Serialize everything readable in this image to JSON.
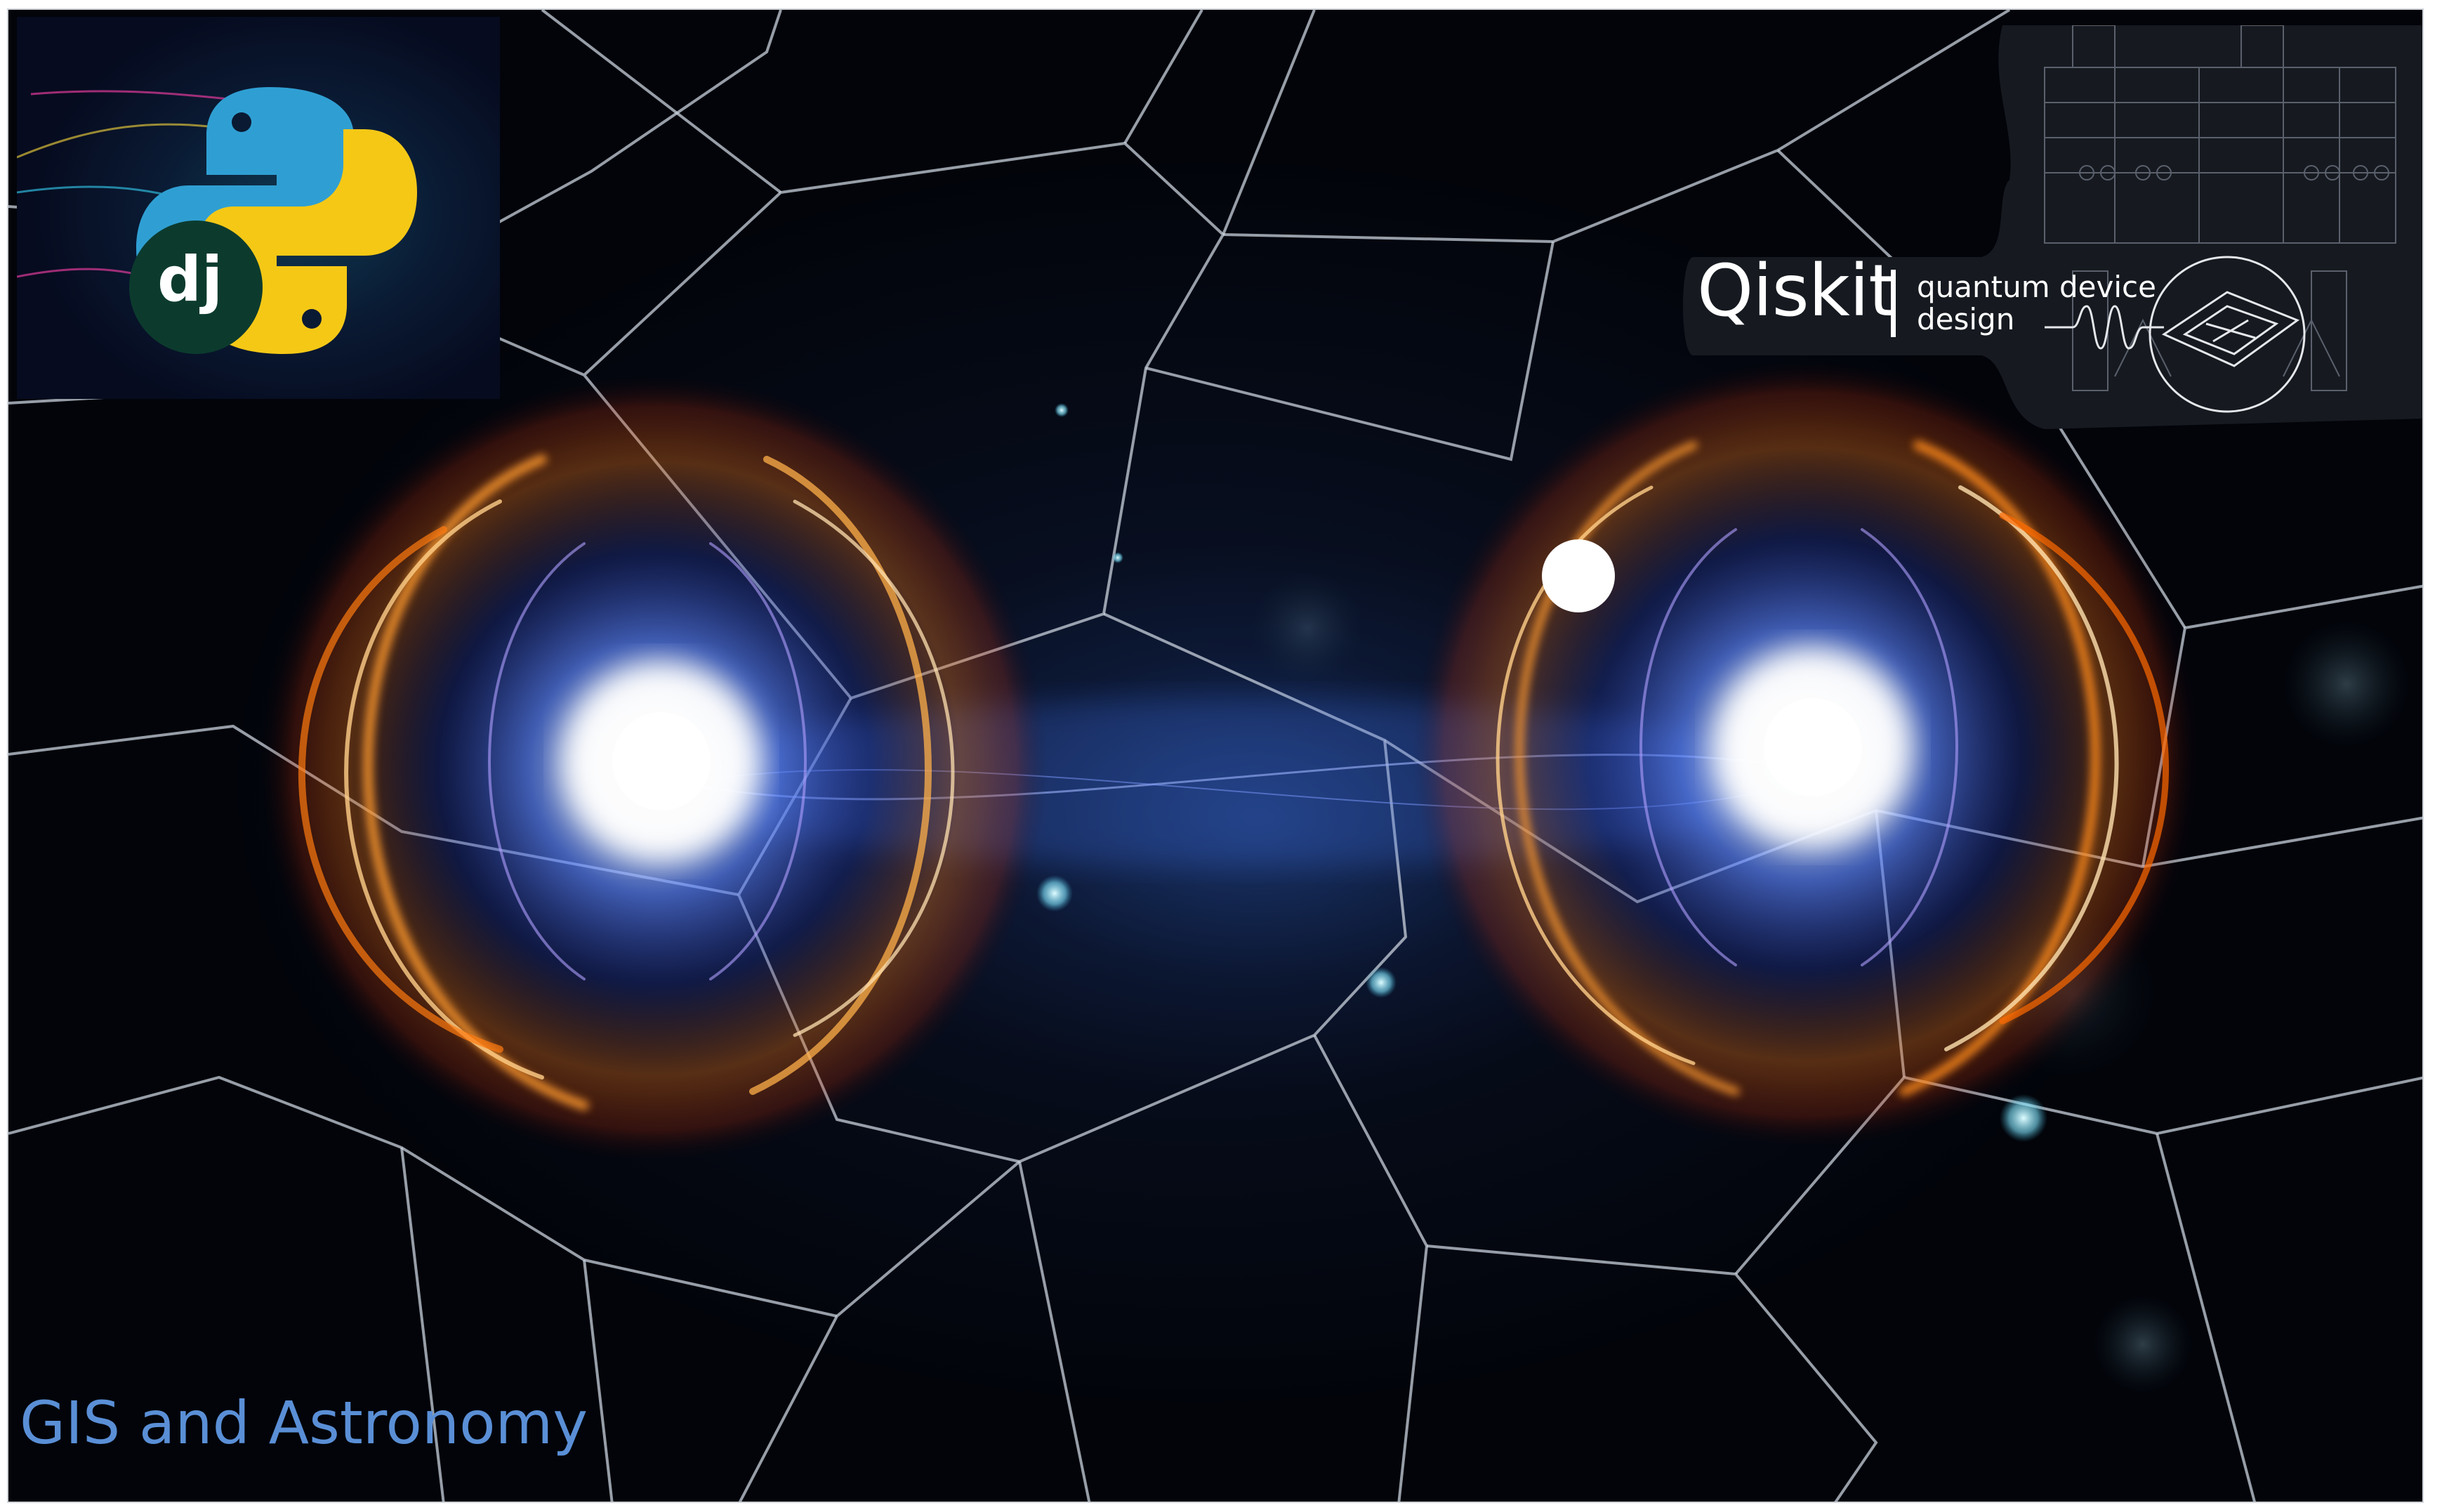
{
  "scene": {
    "caption": "GIS and Astronomy",
    "colors": {
      "background": "#050a17",
      "network_lines": "#c9d2dc",
      "orb_core": "#ffffff",
      "orb_glow": "#4a78ff",
      "ring_warm": "#ff8a1e",
      "caption": "#5a8fd6"
    }
  },
  "logo_tile": {
    "python_colors": {
      "blue": "#2f9fd3",
      "yellow": "#f5c816"
    },
    "django": {
      "text": "dj",
      "badge_color": "#0c3b2e"
    }
  },
  "qiskit": {
    "brand": "Qiskit",
    "subtitle_line1": "quantum device",
    "subtitle_line2": "design",
    "chip_icon": "quantum-chip-icon"
  }
}
